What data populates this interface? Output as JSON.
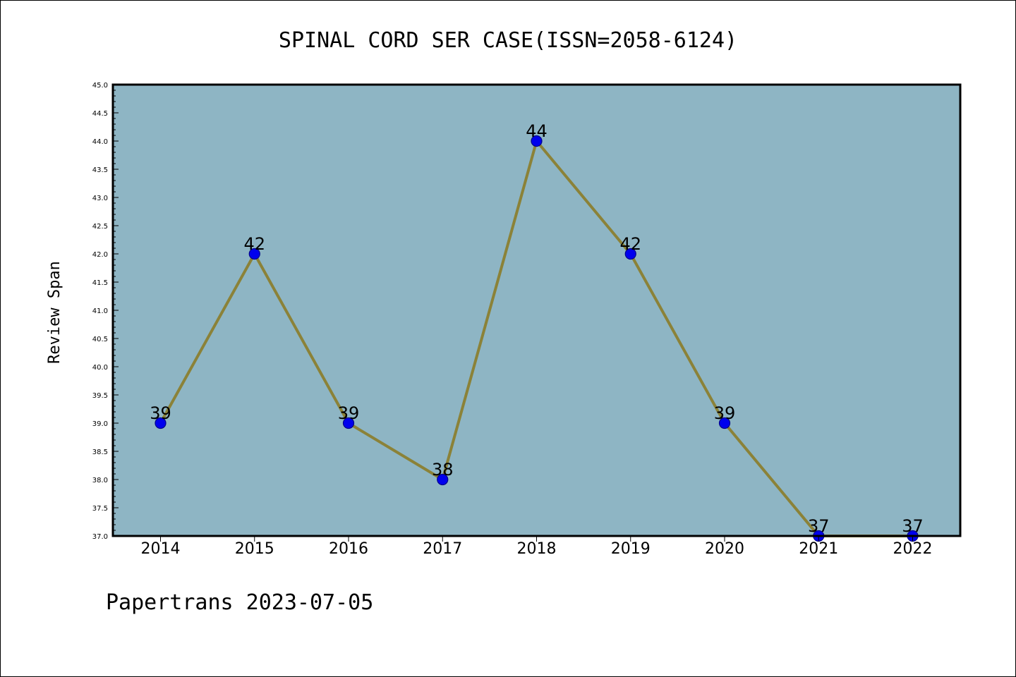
{
  "chart_data": {
    "type": "line",
    "title": "SPINAL CORD SER CASE(ISSN=2058-6124)",
    "xlabel": "",
    "ylabel": "Review Span",
    "categories": [
      "2014",
      "2015",
      "2016",
      "2017",
      "2018",
      "2019",
      "2020",
      "2021",
      "2022"
    ],
    "series": [
      {
        "values": [
          39,
          42,
          39,
          38,
          44,
          42,
          39,
          37,
          37
        ]
      }
    ],
    "data_labels": [
      "39",
      "42",
      "39",
      "38",
      "44",
      "42",
      "39",
      "37",
      "37"
    ],
    "ylim": [
      37.0,
      45.0
    ],
    "ytick_labels": [
      "37.0",
      "37.5",
      "38.0",
      "38.5",
      "39.0",
      "39.5",
      "40.0",
      "40.5",
      "41.0",
      "41.5",
      "42.0",
      "42.5",
      "43.0",
      "43.5",
      "44.0",
      "44.5",
      "45.0"
    ],
    "grid": false,
    "legend": "none",
    "colors": {
      "plot_background": "#8eb5c4",
      "line": "#8b8238",
      "marker": "#0000ee",
      "marker_edge": "#00008b",
      "axes": "#000000"
    }
  },
  "footer": "Papertrans 2023-07-05"
}
